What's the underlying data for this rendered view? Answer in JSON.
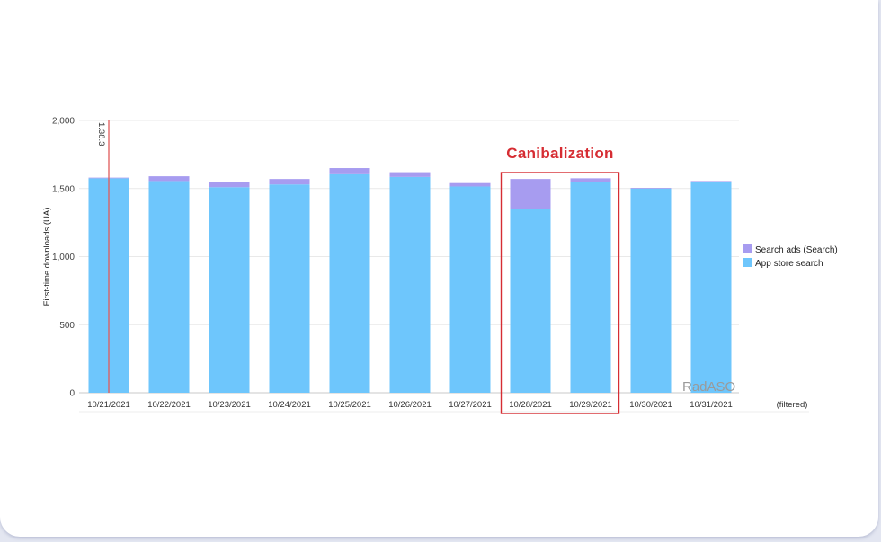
{
  "chart_data": {
    "type": "bar",
    "stacked": true,
    "categories": [
      "10/21/2021",
      "10/22/2021",
      "10/23/2021",
      "10/24/2021",
      "10/25/2021",
      "10/26/2021",
      "10/27/2021",
      "10/28/2021",
      "10/29/2021",
      "10/30/2021",
      "10/31/2021"
    ],
    "series": [
      {
        "name": "App store search",
        "color": "#6ec6fc",
        "values": [
          1575,
          1555,
          1510,
          1530,
          1605,
          1585,
          1515,
          1350,
          1550,
          1500,
          1550
        ]
      },
      {
        "name": "Search ads (Search)",
        "color": "#a79cf0",
        "values": [
          5,
          35,
          40,
          40,
          45,
          35,
          25,
          220,
          25,
          5,
          5
        ]
      }
    ],
    "ylabel": "First-time downloads (UA)",
    "ylim": [
      0,
      2000
    ],
    "yticks": [
      "0",
      "500",
      "1,000",
      "1,500",
      "2,000"
    ],
    "extra_x_label": "(filtered)",
    "legend_position": "right",
    "grid": true,
    "marker": {
      "label": "1.38.3",
      "category": "10/21/2021",
      "color": "#e05b5b"
    },
    "annotation": {
      "text": "Canibalization",
      "categories": [
        "10/28/2021",
        "10/29/2021"
      ],
      "color": "#d62d33"
    },
    "watermark": "RadASO"
  }
}
